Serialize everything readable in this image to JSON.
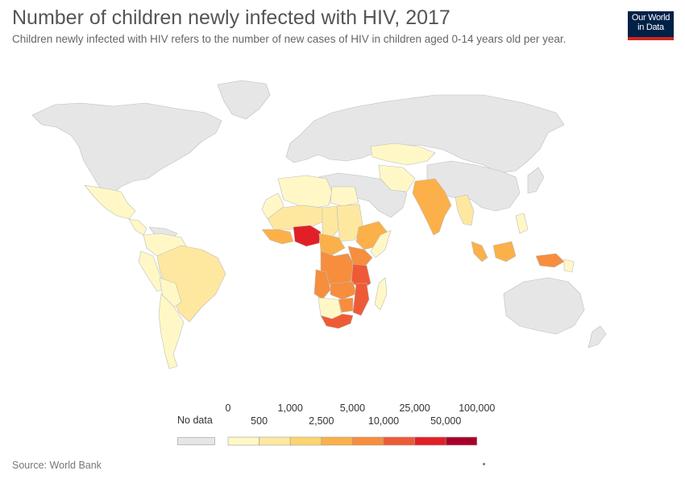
{
  "title": "Number of children newly infected with HIV, 2017",
  "subtitle": "Children newly infected with HIV refers to the number of new cases of HIV in children aged 0-14 years old per year.",
  "logo": {
    "line1": "Our World",
    "line2": "in Data",
    "bg_color": "#002147",
    "accent_color": "#ce261e"
  },
  "source": "Source: World Bank",
  "legend": {
    "no_data_label": "No data",
    "no_data_color": "#e6e6e6",
    "top_labels": [
      "0",
      "1,000",
      "5,000",
      "25,000",
      "100,000"
    ],
    "bottom_labels": [
      "500",
      "2,500",
      "10,000",
      "50,000"
    ],
    "bins": [
      {
        "min": 0,
        "max": 500,
        "color": "#fff8c6"
      },
      {
        "min": 500,
        "max": 1000,
        "color": "#fee8a0"
      },
      {
        "min": 1000,
        "max": 2500,
        "color": "#fdd36e"
      },
      {
        "min": 2500,
        "max": 5000,
        "color": "#fbb04a"
      },
      {
        "min": 5000,
        "max": 10000,
        "color": "#f68e3e"
      },
      {
        "min": 10000,
        "max": 25000,
        "color": "#ef5a36"
      },
      {
        "min": 25000,
        "max": 50000,
        "color": "#e21f26"
      },
      {
        "min": 50000,
        "max": 100000,
        "color": "#a8002a"
      }
    ]
  },
  "chart_data": {
    "type": "choropleth",
    "year": 2017,
    "unit": "children newly infected with HIV",
    "regions": [
      {
        "name": "Nigeria",
        "bin": 6
      },
      {
        "name": "Mozambique",
        "bin": 5
      },
      {
        "name": "South Africa",
        "bin": 5
      },
      {
        "name": "Tanzania",
        "bin": 5
      },
      {
        "name": "Kenya",
        "bin": 4
      },
      {
        "name": "Uganda",
        "bin": 4
      },
      {
        "name": "DR Congo",
        "bin": 4
      },
      {
        "name": "Zambia",
        "bin": 4
      },
      {
        "name": "Malawi",
        "bin": 4
      },
      {
        "name": "Zimbabwe",
        "bin": 4
      },
      {
        "name": "Angola",
        "bin": 4
      },
      {
        "name": "Ethiopia",
        "bin": 3
      },
      {
        "name": "India",
        "bin": 3
      },
      {
        "name": "Indonesia",
        "bin": 3
      },
      {
        "name": "Cameroon",
        "bin": 3
      },
      {
        "name": "Cote d'Ivoire",
        "bin": 3
      },
      {
        "name": "Ghana",
        "bin": 3
      },
      {
        "name": "Brazil",
        "bin": 1
      },
      {
        "name": "Sudan",
        "bin": 1
      },
      {
        "name": "Chad",
        "bin": 1
      },
      {
        "name": "Mali",
        "bin": 1
      },
      {
        "name": "Burkina Faso",
        "bin": 2
      },
      {
        "name": "Thailand",
        "bin": 1
      },
      {
        "name": "Myanmar",
        "bin": 1
      },
      {
        "name": "Mexico",
        "bin": 0
      },
      {
        "name": "Argentina",
        "bin": 0
      },
      {
        "name": "Peru",
        "bin": 0
      },
      {
        "name": "Colombia",
        "bin": 0
      },
      {
        "name": "Algeria",
        "bin": 0
      },
      {
        "name": "Egypt",
        "bin": 0
      },
      {
        "name": "Mongolia",
        "bin": 0
      },
      {
        "name": "Kazakhstan",
        "bin": 0
      },
      {
        "name": "Iran",
        "bin": 0
      },
      {
        "name": "Ukraine",
        "bin": 0
      },
      {
        "name": "Papua New Guinea",
        "bin": 0
      },
      {
        "name": "Madagascar",
        "bin": 0
      },
      {
        "name": "Namibia",
        "bin": 0
      },
      {
        "name": "Botswana",
        "bin": 1
      }
    ]
  }
}
